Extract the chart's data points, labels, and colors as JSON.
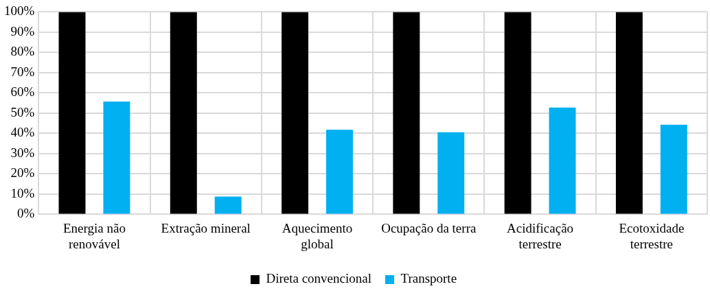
{
  "chart_data": {
    "type": "bar",
    "categories": [
      "Energia não renovável",
      "Extração mineral",
      "Aquecimento global",
      "Ocupação da terra",
      "Acidificação terrestre",
      "Ecotoxidade terrestre"
    ],
    "series": [
      {
        "name": "Direta convencional",
        "color": "#000000",
        "values": [
          100,
          100,
          100,
          100,
          100,
          100
        ]
      },
      {
        "name": "Transporte",
        "color": "#00b0f0",
        "values": [
          55.7,
          8.8,
          41.8,
          40.6,
          52.8,
          44.3
        ]
      }
    ],
    "ylim": [
      0,
      100
    ],
    "yticks": [
      {
        "value": 0,
        "label": "0%"
      },
      {
        "value": 10,
        "label": "10%"
      },
      {
        "value": 20,
        "label": "20%"
      },
      {
        "value": 30,
        "label": "30%"
      },
      {
        "value": 40,
        "label": "40%"
      },
      {
        "value": 50,
        "label": "50%"
      },
      {
        "value": 60,
        "label": "60%"
      },
      {
        "value": 70,
        "label": "70%"
      },
      {
        "value": 80,
        "label": "80%"
      },
      {
        "value": 90,
        "label": "90%"
      },
      {
        "value": 100,
        "label": "100%"
      }
    ],
    "grid": true,
    "legend": "bottom"
  }
}
